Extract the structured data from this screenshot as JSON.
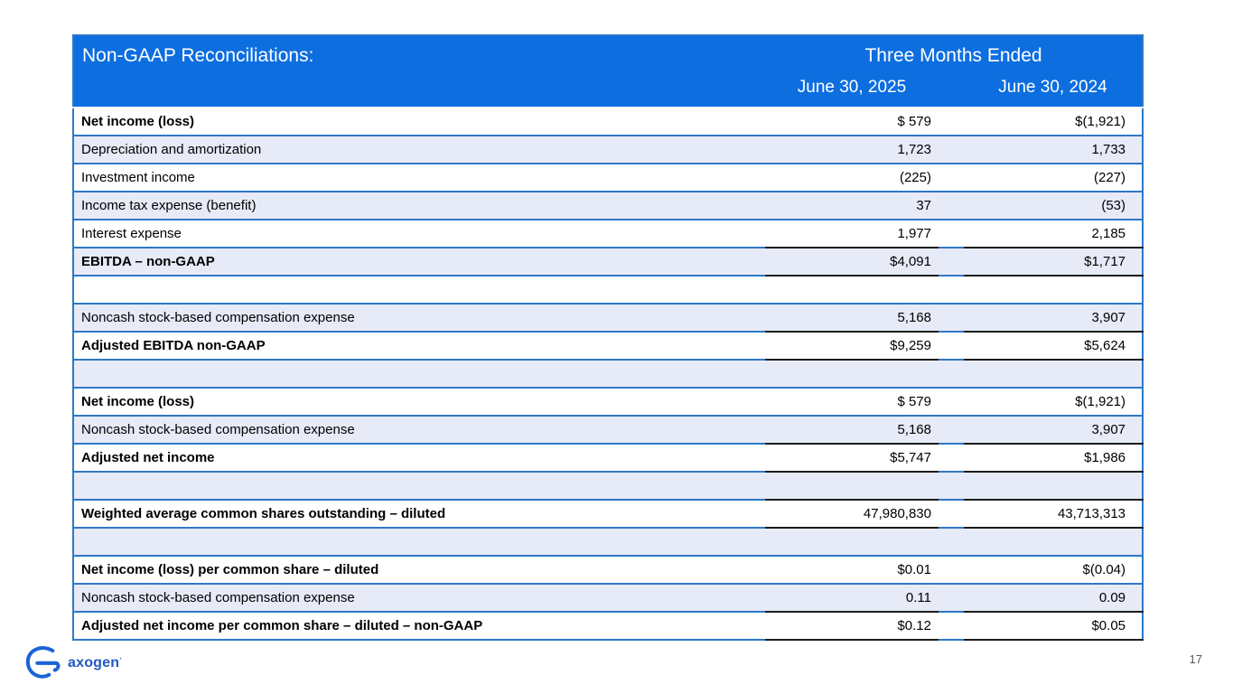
{
  "colors": {
    "header_blue": "#0d6ee0",
    "row_separator_blue": "#2f78c6",
    "shaded_row": "#e7eaf7",
    "accounting_border": "#1c1c1c",
    "logo_blue": "#1a63d8",
    "page_number_gray": "#595959"
  },
  "table": {
    "title": "Non-GAAP Reconciliations:",
    "period_header": "Three Months Ended",
    "columns": [
      "June 30, 2025",
      "June 30, 2024"
    ],
    "rows": [
      {
        "label": "Net income (loss)",
        "bold": true,
        "v1": "$ 579",
        "v2": "$(1,921)",
        "total": false
      },
      {
        "label": "Depreciation and amortization",
        "bold": false,
        "v1": "1,723",
        "v2": "1,733",
        "total": false
      },
      {
        "label": "Investment income",
        "bold": false,
        "v1": "(225)",
        "v2": "(227)",
        "total": false
      },
      {
        "label": "Income tax expense (benefit)",
        "bold": false,
        "v1": "37",
        "v2": "(53)",
        "total": false
      },
      {
        "label": "Interest expense",
        "bold": false,
        "v1": "1,977",
        "v2": "2,185",
        "total": false
      },
      {
        "label": "EBITDA – non-GAAP",
        "bold": true,
        "v1": "$4,091",
        "v2": "$1,717",
        "total": true
      },
      {
        "label": "",
        "bold": false,
        "v1": "",
        "v2": "",
        "total": false
      },
      {
        "label": "Noncash stock-based compensation expense",
        "bold": false,
        "v1": "5,168",
        "v2": "3,907",
        "total": false
      },
      {
        "label": "Adjusted EBITDA non-GAAP",
        "bold": true,
        "v1": "$9,259",
        "v2": "$5,624",
        "total": true
      },
      {
        "label": "",
        "bold": false,
        "v1": "",
        "v2": "",
        "total": false
      },
      {
        "label": "Net income (loss)",
        "bold": true,
        "v1": "$ 579",
        "v2": "$(1,921)",
        "total": false
      },
      {
        "label": "Noncash stock-based compensation expense",
        "bold": false,
        "v1": "5,168",
        "v2": "3,907",
        "total": false
      },
      {
        "label": "Adjusted net income",
        "bold": true,
        "v1": "$5,747",
        "v2": "$1,986",
        "total": true
      },
      {
        "label": "",
        "bold": false,
        "v1": "",
        "v2": "",
        "total": false
      },
      {
        "label": "Weighted average common shares outstanding – diluted",
        "bold": true,
        "v1": "47,980,830",
        "v2": "43,713,313",
        "total": true
      },
      {
        "label": "",
        "bold": false,
        "v1": "",
        "v2": "",
        "total": false
      },
      {
        "label": "Net income (loss) per common share – diluted",
        "bold": true,
        "v1": "$0.01",
        "v2": "$(0.04)",
        "total": false
      },
      {
        "label": "Noncash stock-based compensation expense",
        "bold": false,
        "v1": "0.11",
        "v2": "0.09",
        "total": false
      },
      {
        "label": "Adjusted net income per common share – diluted – non-GAAP",
        "bold": true,
        "v1": "$0.12",
        "v2": "$0.05",
        "total": true
      }
    ]
  },
  "footer": {
    "brand": "axogen",
    "reg_mark": "·",
    "page_number": "17"
  }
}
